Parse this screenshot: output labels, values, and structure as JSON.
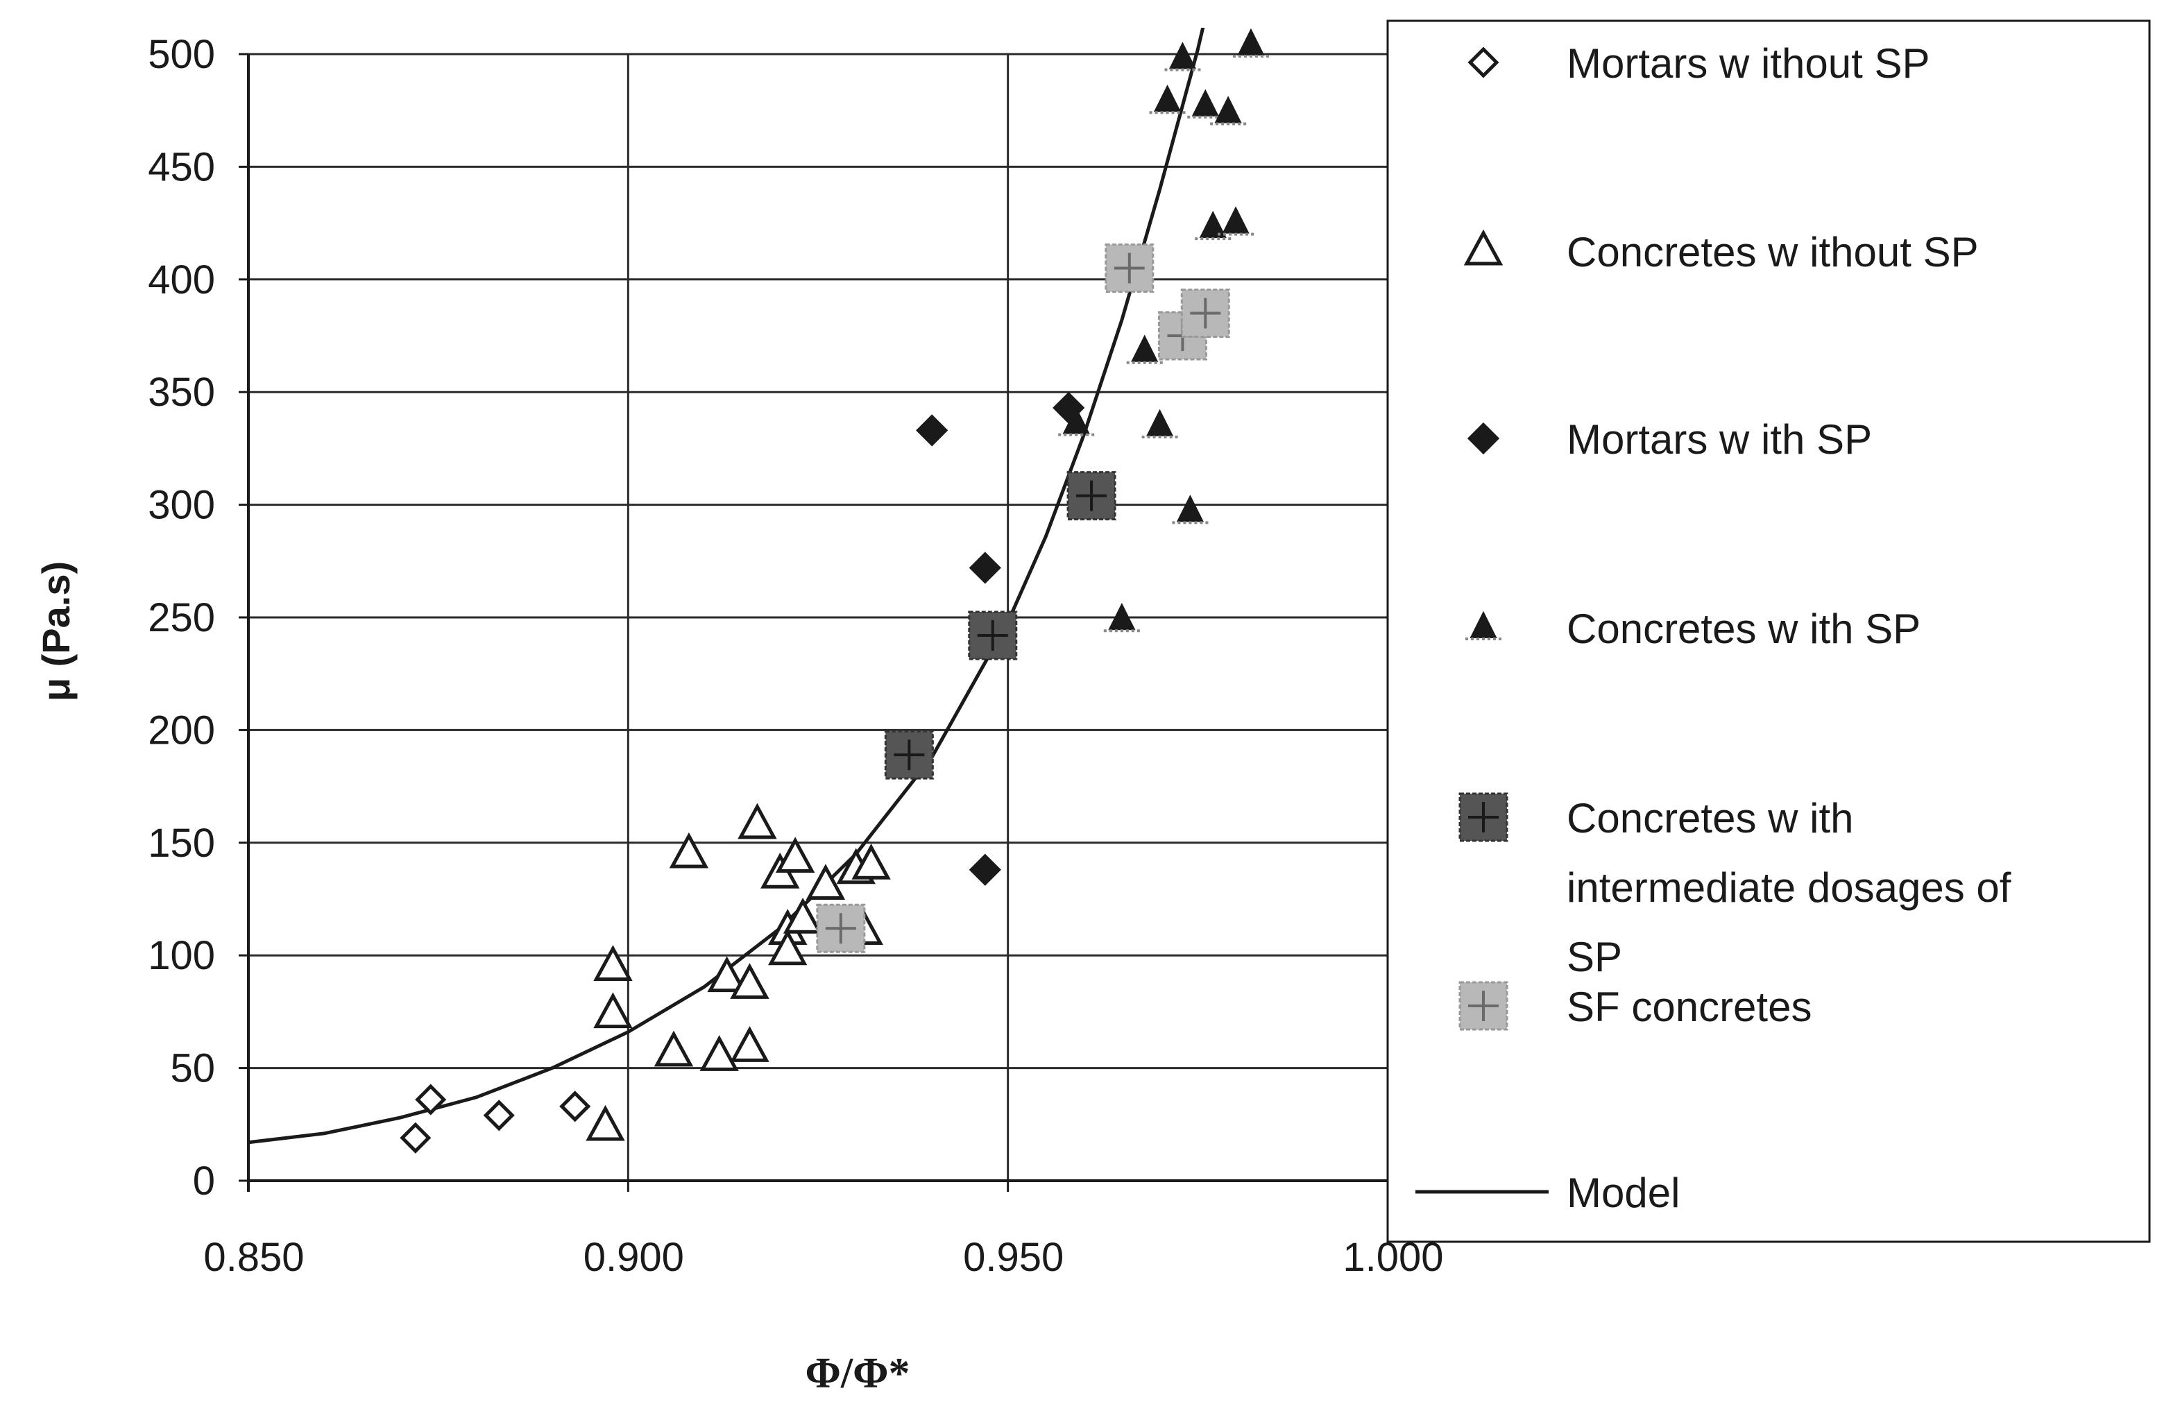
{
  "chart_data": {
    "type": "scatter",
    "title": "",
    "xlabel": "Φ/Φ*",
    "ylabel": "μ (Pa.s)",
    "xlim": [
      0.85,
      1.0
    ],
    "ylim": [
      0,
      500
    ],
    "x_ticks": [
      "0.850",
      "0.900",
      "0.950",
      "1.000"
    ],
    "y_ticks": [
      "0",
      "50",
      "100",
      "150",
      "200",
      "250",
      "300",
      "350",
      "400",
      "450",
      "500"
    ],
    "grid": true,
    "legend_position": "right",
    "series": [
      {
        "name": "Mortars without SP",
        "marker": "diamond-open",
        "points": [
          [
            0.872,
            19
          ],
          [
            0.874,
            36
          ],
          [
            0.883,
            29
          ],
          [
            0.893,
            33
          ]
        ]
      },
      {
        "name": "Concretes without SP",
        "marker": "triangle-open",
        "points": [
          [
            0.897,
            24
          ],
          [
            0.898,
            74
          ],
          [
            0.898,
            95
          ],
          [
            0.906,
            57
          ],
          [
            0.908,
            145
          ],
          [
            0.912,
            55
          ],
          [
            0.913,
            90
          ],
          [
            0.916,
            59
          ],
          [
            0.916,
            87
          ],
          [
            0.917,
            158
          ],
          [
            0.92,
            136
          ],
          [
            0.921,
            111
          ],
          [
            0.921,
            102
          ],
          [
            0.922,
            143
          ],
          [
            0.923,
            116
          ],
          [
            0.926,
            131
          ],
          [
            0.93,
            138
          ],
          [
            0.931,
            111
          ],
          [
            0.932,
            140
          ]
        ]
      },
      {
        "name": "Mortars with SP",
        "marker": "diamond-filled",
        "points": [
          [
            0.94,
            333
          ],
          [
            0.947,
            272
          ],
          [
            0.947,
            138
          ],
          [
            0.958,
            343
          ]
        ]
      },
      {
        "name": "Concretes with SP",
        "marker": "triangle-filled",
        "points": [
          [
            0.959,
            336
          ],
          [
            0.965,
            249
          ],
          [
            0.968,
            368
          ],
          [
            0.97,
            335
          ],
          [
            0.971,
            479
          ],
          [
            0.973,
            498
          ],
          [
            0.974,
            297
          ],
          [
            0.976,
            477
          ],
          [
            0.977,
            423
          ],
          [
            0.979,
            474
          ],
          [
            0.98,
            425
          ],
          [
            0.982,
            504
          ]
        ]
      },
      {
        "name": "Concretes with intermediate dosages of SP",
        "marker": "square-dark",
        "points": [
          [
            0.937,
            189
          ],
          [
            0.948,
            242
          ],
          [
            0.961,
            304
          ]
        ]
      },
      {
        "name": "SF concretes",
        "marker": "square-light",
        "points": [
          [
            0.928,
            112
          ],
          [
            0.966,
            405
          ],
          [
            0.973,
            375
          ],
          [
            0.976,
            385
          ]
        ]
      },
      {
        "name": "Model",
        "type": "line",
        "points": [
          [
            0.85,
            17
          ],
          [
            0.86,
            21
          ],
          [
            0.87,
            28
          ],
          [
            0.88,
            37
          ],
          [
            0.89,
            50
          ],
          [
            0.9,
            66
          ],
          [
            0.91,
            86
          ],
          [
            0.92,
            112
          ],
          [
            0.93,
            145
          ],
          [
            0.94,
            188
          ],
          [
            0.95,
            248
          ],
          [
            0.955,
            286
          ],
          [
            0.96,
            331
          ],
          [
            0.965,
            382
          ],
          [
            0.97,
            440
          ],
          [
            0.975,
            502
          ],
          [
            0.978,
            545
          ]
        ]
      }
    ]
  },
  "legend": {
    "items": [
      {
        "label": "Mortars w ithout SP",
        "marker": "diamond-open"
      },
      {
        "label": "Concretes w ithout SP",
        "marker": "triangle-open"
      },
      {
        "label": "Mortars w ith SP",
        "marker": "diamond-filled"
      },
      {
        "label": "Concretes w ith SP",
        "marker": "triangle-filled"
      },
      {
        "label_lines": [
          "Concretes w ith",
          "intermediate dosages of",
          "SP"
        ],
        "marker": "square-dark"
      },
      {
        "label": "SF concretes",
        "marker": "square-light"
      },
      {
        "label": "Model",
        "marker": "line"
      }
    ]
  },
  "colors": {
    "ink": "#1a1a1a",
    "grid": "#2a2a2a",
    "dark_square": "#555555",
    "light_square": "#b8b8b8"
  }
}
